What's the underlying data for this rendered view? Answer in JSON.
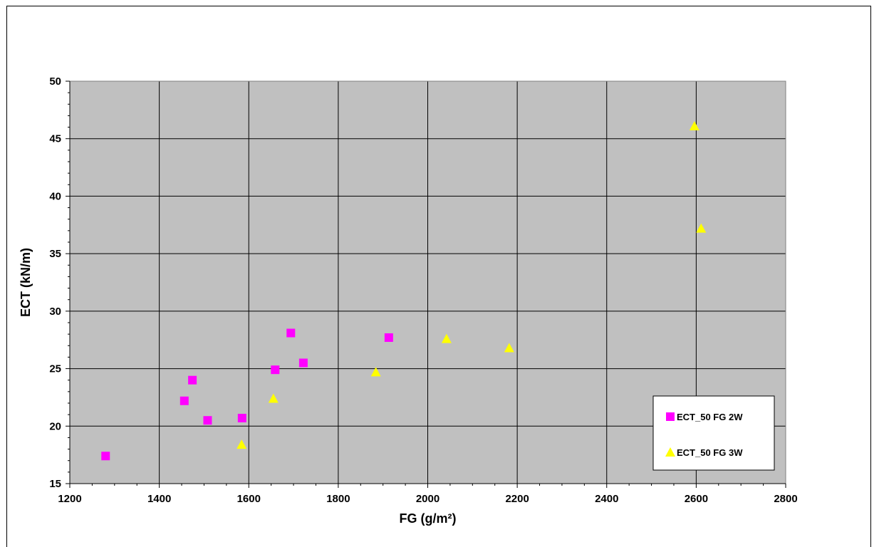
{
  "chart_data": {
    "type": "scatter",
    "title": "",
    "xlabel": "FG (g/m²)",
    "ylabel": "ECT (kN/m)",
    "xlim": [
      1200,
      2800
    ],
    "ylim": [
      15,
      50
    ],
    "xticks": [
      1200,
      1400,
      1600,
      1800,
      2000,
      2200,
      2400,
      2600,
      2800
    ],
    "yticks": [
      15,
      20,
      25,
      30,
      35,
      40,
      45,
      50
    ],
    "grid": true,
    "legend_position": "bottom-right",
    "background_color": "#c0c0c0",
    "series": [
      {
        "name": "ECT_50 FG 2W",
        "marker": "square",
        "color": "#ff00ff",
        "points": [
          [
            1280,
            17.4
          ],
          [
            1456,
            22.2
          ],
          [
            1474,
            24.0
          ],
          [
            1508,
            20.5
          ],
          [
            1585,
            20.7
          ],
          [
            1659,
            24.9
          ],
          [
            1694,
            28.1
          ],
          [
            1722,
            25.5
          ],
          [
            1913,
            27.7
          ]
        ]
      },
      {
        "name": "ECT_50 FG 3W",
        "marker": "triangle",
        "color": "#ffff00",
        "points": [
          [
            1584,
            18.4
          ],
          [
            1655,
            22.4
          ],
          [
            1884,
            24.7
          ],
          [
            2042,
            27.6
          ],
          [
            2182,
            26.8
          ],
          [
            2596,
            46.1
          ],
          [
            2611,
            37.2
          ]
        ]
      }
    ]
  }
}
